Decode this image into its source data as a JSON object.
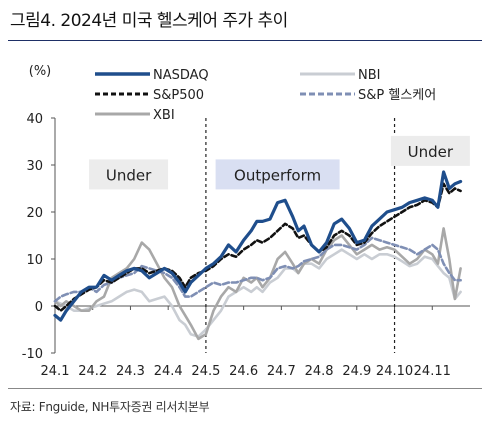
{
  "title": "그림4. 2024년 미국 헬스케어 주가 추이",
  "source": "자료: Fnguide, NH투자증권 리서치본부",
  "chart_data": {
    "type": "line",
    "unit_label": "(%)",
    "ylim": [
      -10,
      40
    ],
    "yticks": [
      "-10",
      "0",
      "10",
      "20",
      "30",
      "40"
    ],
    "x_ticks": [
      "24.1",
      "24.2",
      "24.3",
      "24.4",
      "24.5",
      "24.6",
      "24.7",
      "24.8",
      "24.9",
      "24.10",
      "24.11"
    ],
    "x_range": [
      1,
      12
    ],
    "period_dividers": [
      5,
      10
    ],
    "annotations": [
      {
        "text": "Under",
        "x_center": 2.95,
        "y": 28
      },
      {
        "text": "Outperform",
        "x_center": 6.9,
        "y": 28
      },
      {
        "text": "Under",
        "x_center": 10.95,
        "y": 33
      }
    ],
    "legend": [
      "NASDAQ",
      "NBI",
      "S&P500",
      "S&P 헬스케어",
      "XBI"
    ],
    "series": [
      {
        "name": "NASDAQ",
        "color": "#1f4e8c",
        "dash": "solid",
        "width": 3.2,
        "x": [
          1,
          1.15,
          1.3,
          1.5,
          1.7,
          1.9,
          2.1,
          2.3,
          2.5,
          2.7,
          2.9,
          3.1,
          3.3,
          3.5,
          3.7,
          3.9,
          4.1,
          4.3,
          4.45,
          4.6,
          4.8,
          5,
          5.2,
          5.4,
          5.6,
          5.8,
          6,
          6.2,
          6.35,
          6.5,
          6.7,
          6.9,
          7.1,
          7.3,
          7.45,
          7.6,
          7.8,
          8,
          8.2,
          8.4,
          8.6,
          8.8,
          9,
          9.2,
          9.4,
          9.6,
          9.8,
          10,
          10.2,
          10.4,
          10.6,
          10.8,
          11,
          11.15,
          11.3,
          11.45,
          11.6,
          11.75
        ],
        "y": [
          -2,
          -3,
          -1,
          1,
          3,
          4,
          4,
          6.5,
          5.5,
          6.5,
          7.5,
          8,
          7.5,
          6,
          7,
          8,
          7,
          5,
          3,
          5,
          6.5,
          8,
          9,
          10.5,
          13,
          11.5,
          14,
          16,
          18,
          18,
          18.5,
          22,
          22.5,
          19,
          16,
          17,
          13,
          11.5,
          13.5,
          17.5,
          18.5,
          16.5,
          13.5,
          14,
          17,
          18.5,
          20,
          20.5,
          21,
          22,
          22.5,
          23,
          22.5,
          21,
          28.5,
          25,
          26,
          26.5
        ]
      },
      {
        "name": "NBI",
        "color": "#c9cdd3",
        "dash": "solid",
        "width": 2.6,
        "x": [
          1,
          1.15,
          1.3,
          1.5,
          1.7,
          1.9,
          2.1,
          2.3,
          2.5,
          2.7,
          2.9,
          3.1,
          3.3,
          3.5,
          3.7,
          3.9,
          4.1,
          4.3,
          4.45,
          4.6,
          4.8,
          5,
          5.2,
          5.4,
          5.6,
          5.8,
          6,
          6.2,
          6.35,
          6.5,
          6.7,
          6.9,
          7.1,
          7.3,
          7.45,
          7.6,
          7.8,
          8,
          8.2,
          8.4,
          8.6,
          8.8,
          9,
          9.2,
          9.4,
          9.6,
          9.8,
          10,
          10.2,
          10.4,
          10.6,
          10.8,
          11,
          11.15,
          11.3,
          11.45,
          11.6,
          11.75
        ],
        "y": [
          1,
          0.5,
          0,
          -1,
          -1,
          -0.5,
          0,
          0.5,
          1,
          2,
          3,
          3.5,
          3,
          1,
          1.5,
          2,
          0,
          -3,
          -4,
          -6,
          -6.5,
          -5,
          -3,
          -1,
          2,
          3,
          4,
          3,
          4,
          3,
          5,
          6,
          8,
          8,
          7,
          9,
          9,
          8,
          10,
          11,
          12,
          11,
          10,
          11,
          10,
          11,
          11,
          10.5,
          9.5,
          8.5,
          9,
          10.5,
          10,
          8.5,
          7,
          6,
          1.5,
          3
        ]
      },
      {
        "name": "S&P500",
        "color": "#111111",
        "dash": "5,3",
        "width": 2.6,
        "x": [
          1,
          1.15,
          1.3,
          1.5,
          1.7,
          1.9,
          2.1,
          2.3,
          2.5,
          2.7,
          2.9,
          3.1,
          3.3,
          3.5,
          3.7,
          3.9,
          4.1,
          4.3,
          4.45,
          4.6,
          4.8,
          5,
          5.2,
          5.4,
          5.6,
          5.8,
          6,
          6.2,
          6.35,
          6.5,
          6.7,
          6.9,
          7.1,
          7.3,
          7.45,
          7.6,
          7.8,
          8,
          8.2,
          8.4,
          8.6,
          8.8,
          9,
          9.2,
          9.4,
          9.6,
          9.8,
          10,
          10.2,
          10.4,
          10.6,
          10.8,
          11,
          11.15,
          11.3,
          11.45,
          11.6,
          11.75
        ],
        "y": [
          0,
          -1,
          0,
          1.5,
          2.5,
          3.5,
          4,
          5.5,
          5,
          6,
          7,
          8,
          8,
          7,
          7.5,
          8,
          7.5,
          6,
          4,
          6,
          7,
          7.5,
          8.5,
          10,
          11,
          10.5,
          12,
          13,
          14,
          13.5,
          14.5,
          16,
          17.5,
          16.5,
          14.5,
          15,
          13,
          11.5,
          12.5,
          15,
          16,
          15,
          13,
          13.5,
          15.5,
          17,
          18,
          19,
          20,
          21,
          21.5,
          22.5,
          22,
          21,
          26,
          24,
          25,
          24.5
        ]
      },
      {
        "name": "S&P 헬스케어",
        "color": "#7f8fb4",
        "dash": "6,3",
        "width": 2.6,
        "x": [
          1,
          1.15,
          1.3,
          1.5,
          1.7,
          1.9,
          2.1,
          2.3,
          2.5,
          2.7,
          2.9,
          3.1,
          3.3,
          3.5,
          3.7,
          3.9,
          4.1,
          4.3,
          4.45,
          4.6,
          4.8,
          5,
          5.2,
          5.4,
          5.6,
          5.8,
          6,
          6.2,
          6.35,
          6.5,
          6.7,
          6.9,
          7.1,
          7.3,
          7.45,
          7.6,
          7.8,
          8,
          8.2,
          8.4,
          8.6,
          8.8,
          9,
          9.2,
          9.4,
          9.6,
          9.8,
          10,
          10.2,
          10.4,
          10.6,
          10.8,
          11,
          11.15,
          11.3,
          11.45,
          11.6,
          11.75
        ],
        "y": [
          1,
          2,
          2.5,
          3,
          3,
          4,
          3,
          4.5,
          5,
          6,
          6.5,
          7,
          8.5,
          8,
          7.5,
          7,
          6,
          4,
          2,
          2,
          3,
          4,
          5,
          4.5,
          5,
          5,
          5.5,
          6,
          6,
          5.5,
          6,
          8,
          8.5,
          8,
          8.5,
          9.5,
          10,
          10.5,
          12,
          13,
          13,
          12.5,
          12,
          13,
          14.5,
          14,
          13.5,
          13,
          12.5,
          12,
          11,
          12,
          13,
          12,
          9,
          7,
          5.5,
          5.5
        ]
      },
      {
        "name": "XBI",
        "color": "#a8a8a8",
        "dash": "solid",
        "width": 2.6,
        "x": [
          1,
          1.15,
          1.3,
          1.5,
          1.7,
          1.9,
          2.1,
          2.3,
          2.5,
          2.7,
          2.9,
          3.1,
          3.3,
          3.5,
          3.7,
          3.9,
          4.1,
          4.3,
          4.45,
          4.6,
          4.8,
          5,
          5.2,
          5.4,
          5.6,
          5.8,
          6,
          6.2,
          6.35,
          6.5,
          6.7,
          6.9,
          7.1,
          7.3,
          7.45,
          7.6,
          7.8,
          8,
          8.2,
          8.4,
          8.6,
          8.8,
          9,
          9.2,
          9.4,
          9.6,
          9.8,
          10,
          10.2,
          10.4,
          10.6,
          10.8,
          11,
          11.15,
          11.3,
          11.45,
          11.6,
          11.75
        ],
        "y": [
          1,
          0,
          1,
          0,
          -1,
          -1,
          1,
          2,
          6,
          7,
          8,
          10,
          13.5,
          12,
          9,
          6,
          4,
          0,
          -2,
          -4,
          -7,
          -6,
          -1,
          2,
          4,
          3,
          6,
          5,
          6,
          4,
          6,
          10,
          11.5,
          9,
          7,
          9,
          10,
          9,
          12,
          14,
          15,
          13,
          11,
          12,
          13,
          12,
          12.5,
          12,
          10.5,
          9,
          10,
          12,
          11,
          9,
          16.5,
          10,
          1.5,
          8
        ]
      }
    ]
  }
}
